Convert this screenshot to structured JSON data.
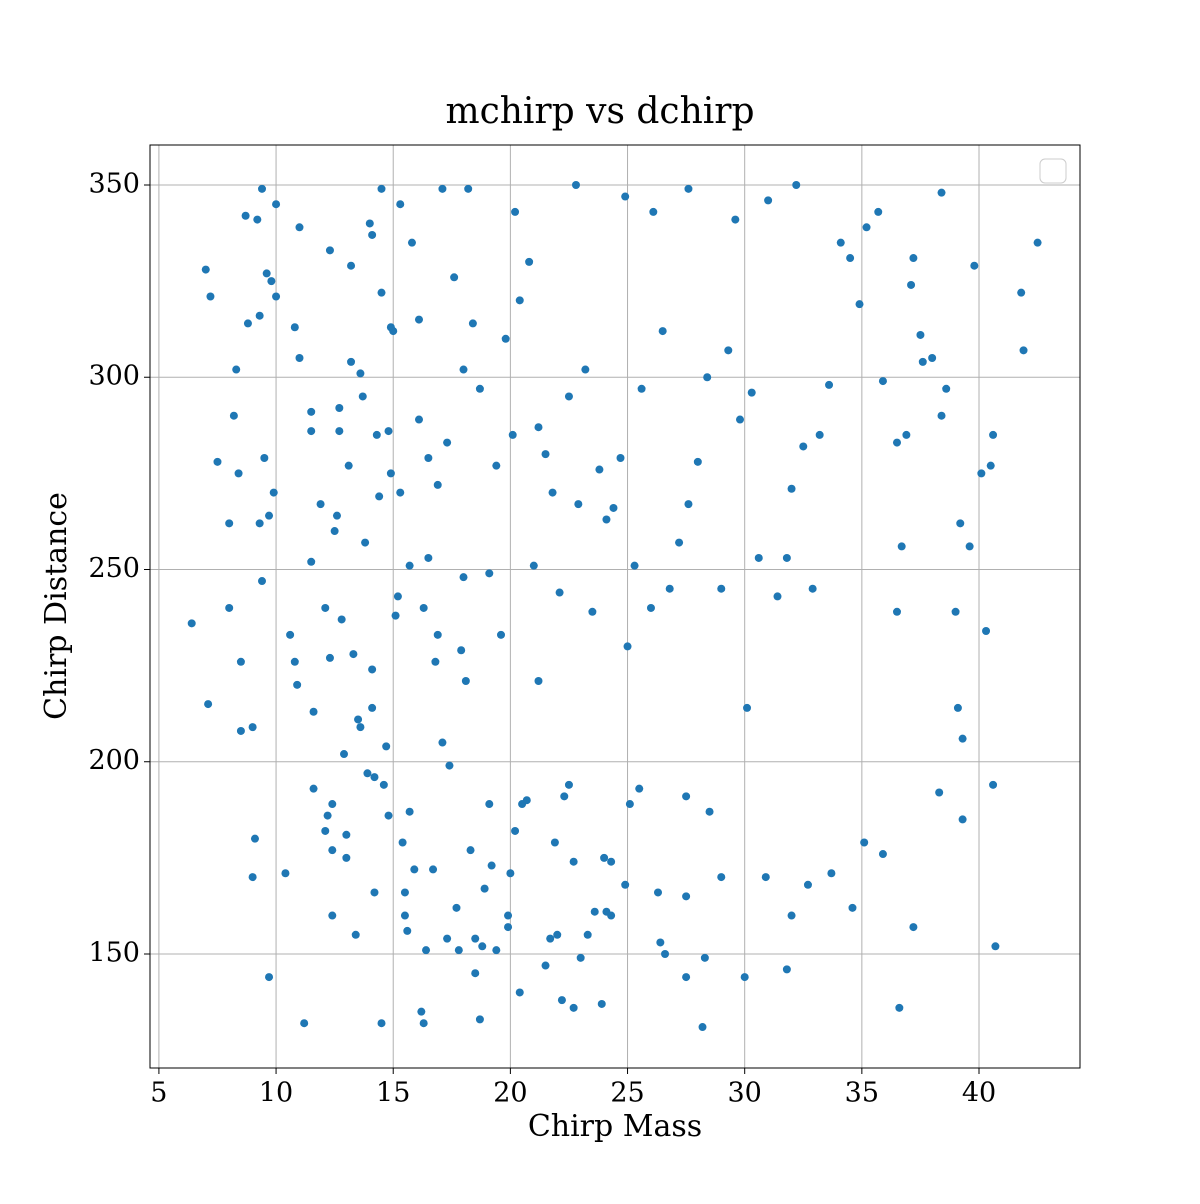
{
  "chart_data": {
    "type": "scatter",
    "title": "mchirp vs dchirp",
    "x_label": "Chirp Mass",
    "y_label": "Chirp Distance",
    "color": "#1f77b4",
    "grid": true,
    "xlim": [
      4.62,
      44.31
    ],
    "ylim": [
      120.35,
      360.4
    ],
    "xticks": [
      5,
      10,
      15,
      20,
      25,
      30,
      35,
      40
    ],
    "yticks": [
      150,
      200,
      250,
      300,
      350
    ],
    "x": [
      6.4,
      7.0,
      7.1,
      7.2,
      7.5,
      8.0,
      8.0,
      8.2,
      8.3,
      8.4,
      8.5,
      8.5,
      8.7,
      8.8,
      9.0,
      9.0,
      9.1,
      9.2,
      9.3,
      9.3,
      9.4,
      9.4,
      9.5,
      9.6,
      9.7,
      9.7,
      9.8,
      9.9,
      10.0,
      10.0,
      10.4,
      10.6,
      10.8,
      10.8,
      10.9,
      11.0,
      11.0,
      11.2,
      11.5,
      11.5,
      11.5,
      11.6,
      11.6,
      11.9,
      12.1,
      12.1,
      12.2,
      12.3,
      12.3,
      12.4,
      12.4,
      12.4,
      12.5,
      12.6,
      12.7,
      12.7,
      12.8,
      12.9,
      13.0,
      13.0,
      13.1,
      13.2,
      13.3,
      13.4,
      13.5,
      13.6,
      13.7,
      13.8,
      13.9,
      14.0,
      14.1,
      14.1,
      14.2,
      14.2,
      14.3,
      14.4,
      14.5,
      14.5,
      14.6,
      14.7,
      14.8,
      14.8,
      14.9,
      15.0,
      15.1,
      15.2,
      15.3,
      15.4,
      15.5,
      15.5,
      15.6,
      15.7,
      15.8,
      15.9,
      16.1,
      16.2,
      16.3,
      16.3,
      16.4,
      16.5,
      16.7,
      16.8,
      16.9,
      17.1,
      17.3,
      17.4,
      17.7,
      17.8,
      17.9,
      18.0,
      18.1,
      18.3,
      18.5,
      18.5,
      18.7,
      18.8,
      18.9,
      19.1,
      19.2,
      19.4,
      19.6,
      19.9,
      19.9,
      20.0,
      20.2,
      20.4,
      20.5,
      20.7,
      21.0,
      21.2,
      21.5,
      21.7,
      21.9,
      22.0,
      22.2,
      22.3,
      22.5,
      22.7,
      22.7,
      23.0,
      23.3,
      23.6,
      23.9,
      24.0,
      24.1,
      24.3,
      24.3,
      24.9,
      25.1,
      25.5,
      26.3,
      26.4,
      26.6,
      27.5,
      27.5,
      27.5,
      28.3,
      28.2,
      28.5,
      29.0,
      30.0,
      30.9,
      31.8,
      32.0,
      32.7,
      33.7,
      34.6,
      35.1,
      35.9,
      36.6,
      37.2,
      38.3,
      39.3,
      40.7,
      40.6,
      41.8,
      41.9,
      42.5,
      40.6,
      40.5,
      40.3,
      40.1,
      39.8,
      39.6,
      39.2,
      39.1,
      39.3,
      39.0,
      38.6,
      38.4,
      38.4,
      38.0,
      37.6,
      37.5,
      37.2,
      37.1,
      36.9,
      36.5,
      36.7,
      36.5,
      35.9,
      35.7,
      35.2,
      34.9,
      34.5,
      34.1,
      33.6,
      33.2,
      32.9,
      32.5,
      32.0,
      31.8,
      31.4,
      30.6,
      30.3,
      30.1,
      29.8,
      29.3,
      29.0,
      28.4,
      28.0,
      27.6,
      27.2,
      26.8,
      26.5,
      26.0,
      25.6,
      25.3,
      25.0,
      24.7,
      24.4,
      24.1,
      23.8,
      23.5,
      23.2,
      22.9,
      22.5,
      22.1,
      21.8,
      21.5,
      21.2,
      20.8,
      20.4,
      20.1,
      19.8,
      19.4,
      19.1,
      18.7,
      18.4,
      18.0,
      17.6,
      17.3,
      16.9,
      16.5,
      16.1,
      15.7,
      15.3,
      14.9,
      14.5,
      14.1,
      13.6,
      13.2,
      22.8,
      27.6,
      31.0,
      32.2,
      20.2,
      24.9,
      17.1,
      18.2,
      26.1,
      29.6
    ],
    "y": [
      236,
      328,
      215,
      321,
      278,
      262,
      240,
      290,
      302,
      275,
      226,
      208,
      342,
      314,
      209,
      170,
      180,
      341,
      316,
      262,
      247,
      349,
      279,
      327,
      144,
      264,
      325,
      270,
      321,
      345,
      171,
      233,
      313,
      226,
      220,
      305,
      339,
      132,
      291,
      286,
      252,
      213,
      193,
      267,
      240,
      182,
      186,
      227,
      333,
      160,
      177,
      189,
      260,
      264,
      292,
      286,
      237,
      202,
      175,
      181,
      277,
      329,
      228,
      155,
      211,
      209,
      295,
      257,
      197,
      340,
      224,
      214,
      166,
      196,
      285,
      269,
      132,
      349,
      194,
      204,
      286,
      186,
      275,
      312,
      238,
      243,
      345,
      179,
      166,
      160,
      156,
      187,
      335,
      172,
      315,
      135,
      132,
      240,
      151,
      253,
      172,
      226,
      233,
      205,
      154,
      199,
      162,
      151,
      229,
      248,
      221,
      177,
      145,
      154,
      133,
      152,
      167,
      189,
      173,
      151,
      233,
      160,
      157,
      171,
      182,
      140,
      189,
      190,
      251,
      221,
      147,
      154,
      179,
      155,
      138,
      191,
      194,
      174,
      136,
      149,
      155,
      161,
      137,
      175,
      161,
      160,
      174,
      168,
      189,
      193,
      166,
      153,
      150,
      165,
      191,
      144,
      149,
      131,
      187,
      170,
      144,
      170,
      146,
      160,
      168,
      171,
      162,
      179,
      176,
      136,
      157,
      192,
      185,
      152,
      194,
      322,
      307,
      335,
      285,
      277,
      234,
      275,
      329,
      256,
      262,
      214,
      206,
      239,
      297,
      290,
      348,
      305,
      304,
      311,
      331,
      324,
      285,
      239,
      256,
      283,
      299,
      343,
      339,
      319,
      331,
      335,
      298,
      285,
      245,
      282,
      271,
      253,
      243,
      253,
      296,
      214,
      289,
      307,
      245,
      300,
      278,
      267,
      257,
      245,
      312,
      240,
      297,
      251,
      230,
      279,
      266,
      263,
      276,
      239,
      302,
      267,
      295,
      244,
      270,
      280,
      287,
      330,
      320,
      285,
      310,
      277,
      249,
      297,
      314,
      302,
      326,
      283,
      272,
      279,
      289,
      251,
      270,
      313,
      322,
      337,
      301,
      304,
      350,
      349,
      346,
      350,
      343,
      347,
      349,
      349,
      343,
      341
    ]
  }
}
